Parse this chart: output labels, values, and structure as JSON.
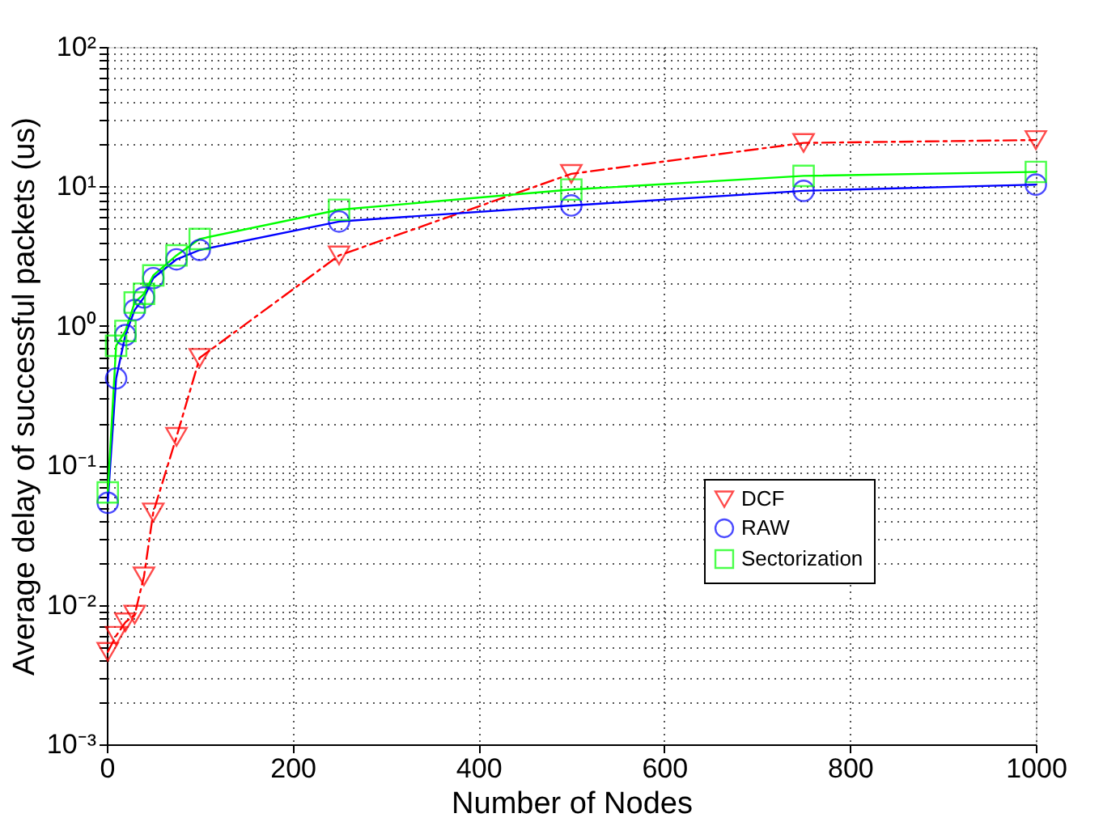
{
  "chart_data": {
    "type": "line",
    "xlabel": "Number of Nodes",
    "ylabel": "Average delay of successful packets (us)",
    "x": [
      1,
      10,
      20,
      30,
      40,
      50,
      75,
      100,
      250,
      500,
      750,
      1000
    ],
    "series": [
      {
        "name": "DCF",
        "color": "#ff0000",
        "marker": "triangle",
        "line_style": "dashed",
        "values": [
          0.0046,
          0.006,
          0.0075,
          0.0085,
          0.016,
          0.046,
          0.16,
          0.59,
          3.2,
          12.3,
          20.5,
          21.5
        ]
      },
      {
        "name": "RAW",
        "color": "#0000ff",
        "marker": "circle",
        "line_style": "solid",
        "values": [
          0.054,
          0.42,
          0.86,
          1.3,
          1.6,
          2.2,
          3.0,
          3.5,
          5.6,
          7.3,
          9.3,
          10.3
        ]
      },
      {
        "name": "Sectorization",
        "color": "#00ff00",
        "marker": "square",
        "line_style": "solid",
        "values": [
          0.064,
          0.72,
          0.92,
          1.47,
          1.7,
          2.3,
          3.2,
          4.2,
          6.8,
          9.5,
          11.9,
          12.7
        ]
      }
    ],
    "log": "y",
    "grid": true,
    "legend": "bottom right",
    "xlim": [
      0,
      1000
    ],
    "xticks": [
      0,
      200,
      400,
      600,
      800,
      1000
    ],
    "ylim": [
      0.001,
      100
    ],
    "yticks": [
      {
        "value": 0.001,
        "label": "10⁻³"
      },
      {
        "value": 0.002,
        "label": null
      },
      {
        "value": 0.003,
        "label": null
      },
      {
        "value": 0.004,
        "label": null
      },
      {
        "value": 0.005,
        "label": null
      },
      {
        "value": 0.006,
        "label": null
      },
      {
        "value": 0.007,
        "label": null
      },
      {
        "value": 0.008,
        "label": null
      },
      {
        "value": 0.009,
        "label": null
      },
      {
        "value": 0.01,
        "label": "10⁻²"
      },
      {
        "value": 0.02,
        "label": null
      },
      {
        "value": 0.03,
        "label": null
      },
      {
        "value": 0.04,
        "label": null
      },
      {
        "value": 0.05,
        "label": null
      },
      {
        "value": 0.06,
        "label": null
      },
      {
        "value": 0.07,
        "label": null
      },
      {
        "value": 0.08,
        "label": null
      },
      {
        "value": 0.09,
        "label": null
      },
      {
        "value": 0.1,
        "label": "10⁻¹"
      },
      {
        "value": 0.2,
        "label": null
      },
      {
        "value": 0.3,
        "label": null
      },
      {
        "value": 0.4,
        "label": null
      },
      {
        "value": 0.5,
        "label": null
      },
      {
        "value": 0.6,
        "label": null
      },
      {
        "value": 0.7,
        "label": null
      },
      {
        "value": 0.8,
        "label": null
      },
      {
        "value": 0.9,
        "label": null
      },
      {
        "value": 1,
        "label": "10⁰"
      },
      {
        "value": 2,
        "label": null
      },
      {
        "value": 3,
        "label": null
      },
      {
        "value": 4,
        "label": null
      },
      {
        "value": 5,
        "label": null
      },
      {
        "value": 6,
        "label": null
      },
      {
        "value": 7,
        "label": null
      },
      {
        "value": 8,
        "label": null
      },
      {
        "value": 9,
        "label": null
      },
      {
        "value": 10,
        "label": "10¹"
      },
      {
        "value": 20,
        "label": null
      },
      {
        "value": 30,
        "label": null
      },
      {
        "value": 40,
        "label": null
      },
      {
        "value": 50,
        "label": null
      },
      {
        "value": 60,
        "label": null
      },
      {
        "value": 70,
        "label": null
      },
      {
        "value": 80,
        "label": null
      },
      {
        "value": 90,
        "label": null
      },
      {
        "value": 100,
        "label": "10²"
      }
    ]
  }
}
